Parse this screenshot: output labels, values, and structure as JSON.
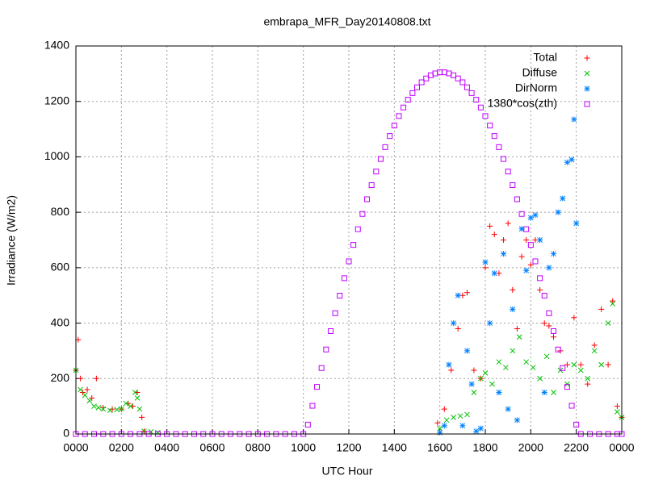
{
  "chart_data": {
    "type": "scatter",
    "title": "embrapa_MFR_Day20140808.txt",
    "x_label": "UTC Hour",
    "y_label": "Irradiance (W/m2)",
    "xlim": [
      0,
      24
    ],
    "ylim": [
      0,
      1400
    ],
    "xticks": [
      {
        "value": 0,
        "label": "0000"
      },
      {
        "value": 2,
        "label": "0200"
      },
      {
        "value": 4,
        "label": "0400"
      },
      {
        "value": 6,
        "label": "0600"
      },
      {
        "value": 8,
        "label": "0800"
      },
      {
        "value": 10,
        "label": "1000"
      },
      {
        "value": 12,
        "label": "1200"
      },
      {
        "value": 14,
        "label": "1400"
      },
      {
        "value": 16,
        "label": "1600"
      },
      {
        "value": 18,
        "label": "1800"
      },
      {
        "value": 20,
        "label": "2000"
      },
      {
        "value": 22,
        "label": "2200"
      },
      {
        "value": 24,
        "label": "0000"
      }
    ],
    "yticks": [
      0,
      200,
      400,
      600,
      800,
      1000,
      1200,
      1400
    ],
    "grid": true,
    "legend": "top-right",
    "series": [
      {
        "name": "Total",
        "color": "#ff0000",
        "marker": "plus",
        "x": [
          0,
          0.1,
          0.2,
          0.3,
          0.5,
          0.7,
          0.9,
          1.2,
          1.6,
          2.0,
          2.3,
          2.5,
          2.7,
          2.9,
          3.0,
          15.9,
          16.2,
          16.5,
          16.8,
          17.0,
          17.2,
          17.5,
          17.8,
          18.0,
          18.2,
          18.4,
          18.6,
          18.8,
          19.0,
          19.2,
          19.4,
          19.6,
          19.8,
          20.0,
          20.2,
          20.4,
          20.6,
          20.8,
          21.0,
          21.3,
          21.6,
          21.9,
          22.2,
          22.5,
          22.8,
          23.1,
          23.4,
          23.6,
          23.8,
          24.0
        ],
        "values": [
          230,
          340,
          200,
          150,
          160,
          130,
          200,
          95,
          90,
          90,
          110,
          100,
          150,
          60,
          10,
          40,
          90,
          230,
          380,
          500,
          510,
          230,
          200,
          600,
          750,
          720,
          580,
          700,
          760,
          520,
          380,
          640,
          700,
          610,
          700,
          520,
          400,
          390,
          350,
          300,
          250,
          420,
          250,
          180,
          320,
          450,
          250,
          480,
          100,
          60
        ]
      },
      {
        "name": "Diffuse",
        "color": "#00c000",
        "marker": "cross",
        "x": [
          0,
          0.2,
          0.4,
          0.6,
          0.8,
          1.0,
          1.2,
          1.5,
          1.8,
          2.0,
          2.2,
          2.4,
          2.6,
          2.7,
          2.8,
          3.0,
          3.3,
          3.6,
          16.0,
          16.3,
          16.6,
          16.9,
          17.2,
          17.5,
          17.8,
          18.0,
          18.3,
          18.6,
          18.9,
          19.2,
          19.5,
          19.8,
          20.1,
          20.4,
          20.7,
          21.0,
          21.3,
          21.6,
          21.9,
          22.2,
          22.5,
          22.8,
          23.1,
          23.4,
          23.6,
          23.8,
          24.0
        ],
        "values": [
          230,
          160,
          140,
          120,
          100,
          95,
          90,
          85,
          88,
          90,
          110,
          100,
          150,
          130,
          90,
          10,
          8,
          5,
          20,
          50,
          60,
          65,
          70,
          150,
          200,
          220,
          180,
          260,
          240,
          300,
          350,
          260,
          240,
          200,
          280,
          150,
          230,
          180,
          250,
          230,
          200,
          300,
          250,
          400,
          470,
          80,
          60
        ]
      },
      {
        "name": "DirNorm",
        "color": "#0080ff",
        "marker": "star",
        "x": [
          16.0,
          16.2,
          16.4,
          16.6,
          16.8,
          17.0,
          17.2,
          17.4,
          17.6,
          17.8,
          18.0,
          18.2,
          18.4,
          18.6,
          18.8,
          19.0,
          19.2,
          19.4,
          19.6,
          19.8,
          20.0,
          20.2,
          20.4,
          20.6,
          20.8,
          21.0,
          21.2,
          21.4,
          21.6,
          21.8,
          21.9,
          22.0
        ],
        "values": [
          5,
          30,
          250,
          400,
          500,
          30,
          300,
          180,
          10,
          20,
          620,
          400,
          580,
          150,
          650,
          90,
          450,
          50,
          740,
          590,
          780,
          790,
          700,
          150,
          600,
          650,
          800,
          850,
          980,
          990,
          1135,
          760
        ]
      },
      {
        "name": "1380*cos(zth)",
        "color": "#c000ff",
        "marker": "square",
        "x": [
          0,
          0.4,
          0.8,
          1.2,
          1.6,
          2.0,
          2.4,
          2.8,
          3.2,
          3.6,
          4.0,
          4.4,
          4.8,
          5.2,
          5.6,
          6.0,
          6.4,
          6.8,
          7.2,
          7.6,
          8.0,
          8.4,
          8.8,
          9.2,
          9.6,
          10.0,
          10.2,
          10.4,
          10.6,
          10.8,
          11.0,
          11.2,
          11.4,
          11.6,
          11.8,
          12.0,
          12.2,
          12.4,
          12.6,
          12.8,
          13.0,
          13.2,
          13.4,
          13.6,
          13.8,
          14.0,
          14.2,
          14.4,
          14.6,
          14.8,
          15.0,
          15.2,
          15.4,
          15.6,
          15.8,
          16.0,
          16.2,
          16.4,
          16.6,
          16.8,
          17.0,
          17.2,
          17.4,
          17.6,
          17.8,
          18.0,
          18.2,
          18.4,
          18.6,
          18.8,
          19.0,
          19.2,
          19.4,
          19.6,
          19.8,
          20.0,
          20.2,
          20.4,
          20.6,
          20.8,
          21.0,
          21.2,
          21.4,
          21.6,
          21.8,
          22.0,
          22.2,
          22.6,
          23.0,
          23.4,
          23.8,
          24.0
        ],
        "values": [
          0,
          0,
          0,
          0,
          0,
          0,
          0,
          0,
          0,
          0,
          0,
          0,
          0,
          0,
          0,
          0,
          0,
          0,
          0,
          0,
          0,
          0,
          0,
          0,
          0,
          0,
          34,
          102,
          170,
          238,
          305,
          371,
          436,
          499,
          562,
          623,
          682,
          739,
          794,
          847,
          898,
          947,
          992,
          1035,
          1075,
          1113,
          1147,
          1178,
          1206,
          1230,
          1251,
          1269,
          1283,
          1294,
          1301,
          1305,
          1305,
          1301,
          1294,
          1283,
          1269,
          1251,
          1230,
          1206,
          1178,
          1147,
          1113,
          1075,
          1035,
          992,
          947,
          898,
          847,
          794,
          739,
          682,
          623,
          562,
          499,
          436,
          371,
          305,
          238,
          170,
          102,
          34,
          0,
          0,
          0,
          0,
          0,
          0
        ]
      }
    ]
  }
}
